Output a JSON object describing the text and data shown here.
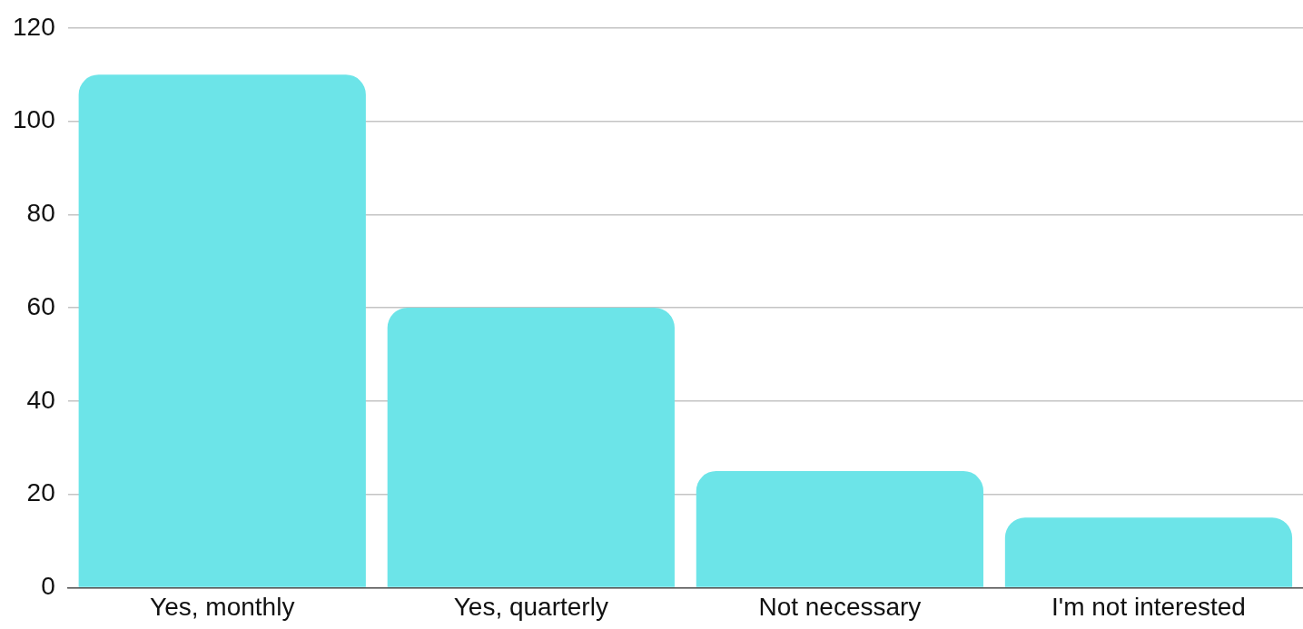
{
  "chart_data": {
    "type": "bar",
    "categories": [
      "Yes, monthly",
      "Yes, quarterly",
      "Not necessary",
      "I'm not interested"
    ],
    "values": [
      110,
      60,
      25,
      15
    ],
    "color": "#6ce4e8",
    "ylim": [
      0,
      120
    ],
    "yticks": [
      0,
      20,
      40,
      60,
      80,
      100,
      120
    ],
    "grid": "y",
    "legend": false
  }
}
